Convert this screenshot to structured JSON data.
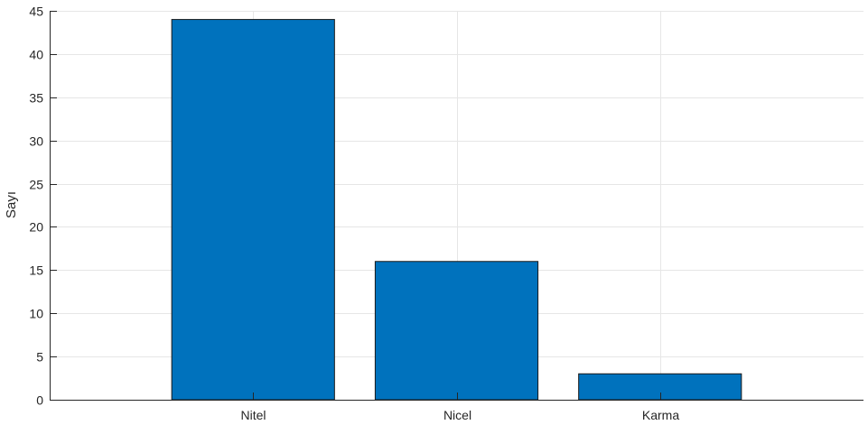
{
  "chart_data": {
    "type": "bar",
    "title": "",
    "xlabel": "",
    "ylabel": "Sayı",
    "categories": [
      "Nitel",
      "Nicel",
      "Karma"
    ],
    "values": [
      44,
      16,
      3
    ],
    "xlim": [
      0,
      4
    ],
    "ylim": [
      0,
      45
    ],
    "yticks": [
      0,
      5,
      10,
      15,
      20,
      25,
      30,
      35,
      40,
      45
    ],
    "grid": true,
    "legend": "none",
    "colors": {
      "bar_fill": "#0072bd",
      "bar_edge": "#1a1a1a",
      "grid": "#e6e6e6",
      "axis": "#262626"
    }
  }
}
